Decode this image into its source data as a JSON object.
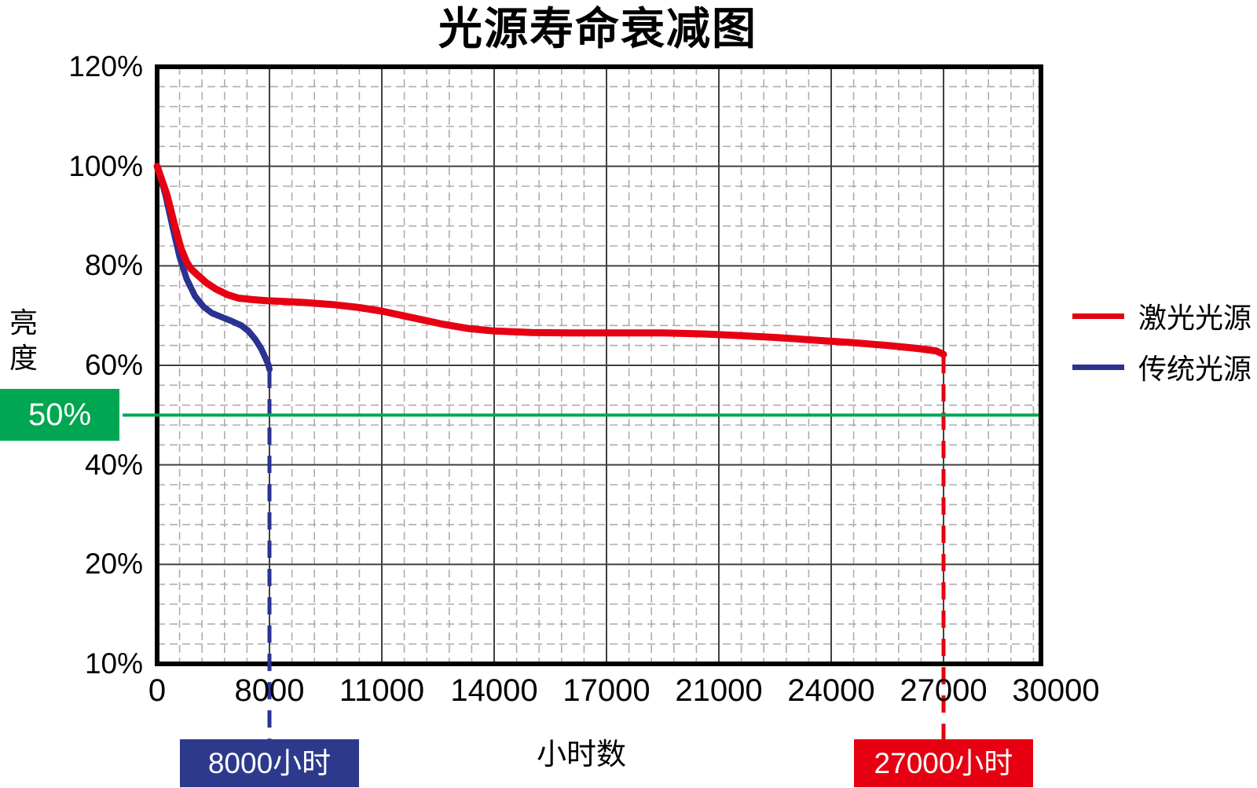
{
  "title": "光源寿命衰减图",
  "y_axis": {
    "label_vertical": "亮度",
    "tick_labels": [
      "120%",
      "100%",
      "80%",
      "60%",
      "40%",
      "20%",
      "10%"
    ]
  },
  "x_axis": {
    "label": "小时数",
    "tick_labels": [
      "0",
      "8000",
      "11000",
      "14000",
      "17000",
      "21000",
      "24000",
      "27000",
      "30000"
    ]
  },
  "threshold": {
    "badge_label": "50%",
    "value_percent": 50,
    "color": "#00a651"
  },
  "legend": {
    "items": [
      {
        "label": "激光光源",
        "color": "#e60012"
      },
      {
        "label": "传统光源",
        "color": "#2b3290"
      }
    ]
  },
  "annotations": {
    "traditional_life_badge": "8000小时",
    "laser_life_badge": "27000小时"
  },
  "colors": {
    "laser": "#e60012",
    "traditional": "#2b3290",
    "threshold_green": "#00a651",
    "badge_blue": "#2d3a8c",
    "badge_red": "#e60012",
    "grid_minor": "#adadad",
    "grid_major": "#404040",
    "plot_border": "#000000"
  },
  "chart_data": {
    "type": "line",
    "title": "光源寿命衰减图",
    "xlabel": "小时数",
    "ylabel": "亮度",
    "x_ticks_hours": [
      0,
      8000,
      11000,
      14000,
      17000,
      21000,
      24000,
      27000,
      30000
    ],
    "y_ticks_percent_labels": [
      120,
      100,
      80,
      60,
      40,
      20,
      10
    ],
    "y_axis_linear_range": [
      0,
      120
    ],
    "grid": "major-solid with 5x5 dashed minor subdivisions",
    "legend_position": "right-outside",
    "threshold_line_percent": 50,
    "series": [
      {
        "name": "激光光源",
        "color": "#e60012",
        "life_marker_hours": 27000,
        "points": [
          [
            0,
            100
          ],
          [
            300,
            97.5
          ],
          [
            700,
            94.3
          ],
          [
            1200,
            88.7
          ],
          [
            1700,
            83.5
          ],
          [
            2100,
            80.8
          ],
          [
            2400,
            79.4
          ],
          [
            2900,
            78.1
          ],
          [
            3500,
            76.6
          ],
          [
            4200,
            75.3
          ],
          [
            5000,
            74.2
          ],
          [
            5800,
            73.5
          ],
          [
            6800,
            73.2
          ],
          [
            7800,
            73.0
          ],
          [
            8800,
            72.7
          ],
          [
            9700,
            72.2
          ],
          [
            10400,
            71.6
          ],
          [
            11000,
            70.9
          ],
          [
            11800,
            69.6
          ],
          [
            12600,
            68.3
          ],
          [
            13300,
            67.4
          ],
          [
            14000,
            66.9
          ],
          [
            15000,
            66.6
          ],
          [
            16000,
            66.5
          ],
          [
            17500,
            66.5
          ],
          [
            19000,
            66.5
          ],
          [
            20500,
            66.3
          ],
          [
            21500,
            66.0
          ],
          [
            22500,
            65.6
          ],
          [
            23500,
            65.1
          ],
          [
            24500,
            64.6
          ],
          [
            25500,
            64.0
          ],
          [
            26300,
            63.4
          ],
          [
            26800,
            62.9
          ],
          [
            27000,
            62.2
          ]
        ]
      },
      {
        "name": "传统光源",
        "color": "#2b3290",
        "life_marker_hours": 8000,
        "points": [
          [
            0,
            100
          ],
          [
            300,
            97.2
          ],
          [
            600,
            94.2
          ],
          [
            1100,
            87.8
          ],
          [
            1600,
            81.8
          ],
          [
            2100,
            77.4
          ],
          [
            2700,
            73.9
          ],
          [
            3300,
            71.8
          ],
          [
            3900,
            70.5
          ],
          [
            4600,
            69.7
          ],
          [
            5300,
            68.9
          ],
          [
            6000,
            68.0
          ],
          [
            6500,
            66.9
          ],
          [
            7000,
            65.2
          ],
          [
            7400,
            63.4
          ],
          [
            7700,
            61.6
          ],
          [
            7900,
            60.3
          ],
          [
            8000,
            59.2
          ]
        ]
      }
    ]
  }
}
